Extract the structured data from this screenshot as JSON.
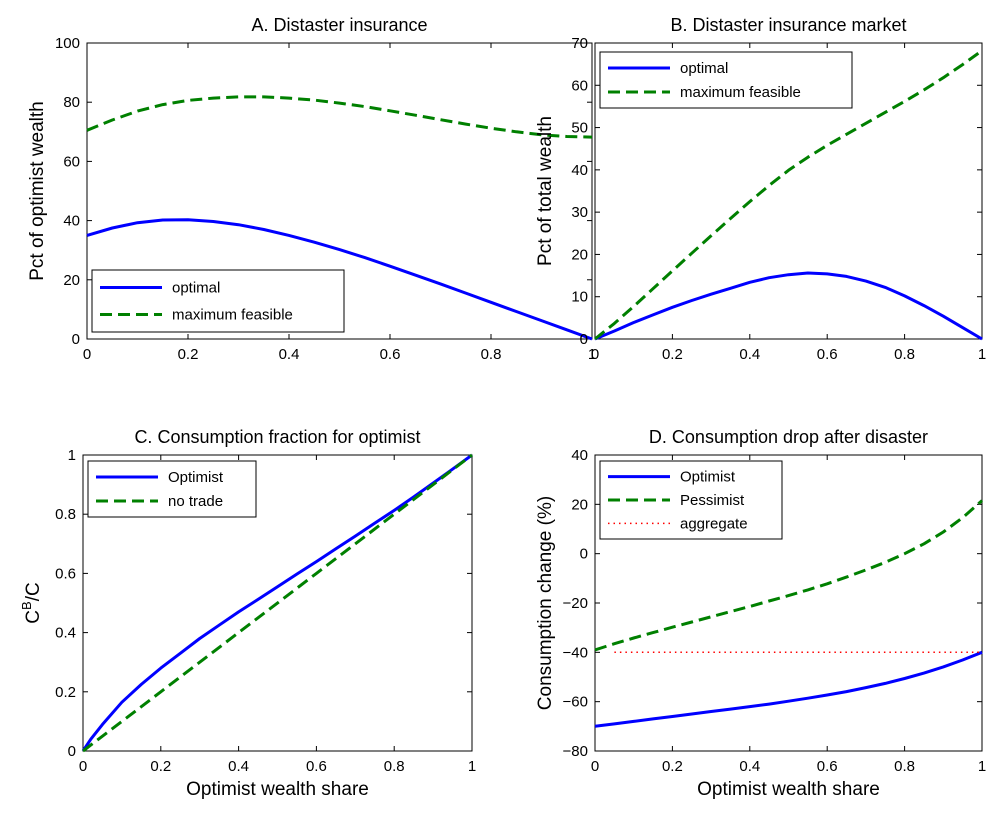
{
  "chart_data": [
    {
      "type": "line",
      "title": "A. Distaster insurance",
      "xlabel": "",
      "ylabel": "Pct of optimist wealth",
      "xlim": [
        0,
        1
      ],
      "ylim": [
        0,
        100
      ],
      "xticks": [
        "0",
        "0.2",
        "0.4",
        "0.6",
        "0.8",
        "1"
      ],
      "yticks": [
        "0",
        "20",
        "40",
        "60",
        "80",
        "100"
      ],
      "legend_position": "bottom-left",
      "series": [
        {
          "name": "optimal",
          "color": "#0000ff",
          "style": "solid",
          "x": [
            0,
            0.05,
            0.1,
            0.15,
            0.2,
            0.25,
            0.3,
            0.35,
            0.4,
            0.45,
            0.5,
            0.55,
            0.6,
            0.65,
            0.7,
            0.75,
            0.8,
            0.85,
            0.9,
            0.95,
            1
          ],
          "y": [
            35,
            37.5,
            39.3,
            40.2,
            40.3,
            39.7,
            38.6,
            37,
            35,
            32.7,
            30.2,
            27.5,
            24.6,
            21.6,
            18.6,
            15.5,
            12.4,
            9.3,
            6.2,
            3.1,
            0
          ]
        },
        {
          "name": "maximum feasible",
          "color": "#008000",
          "style": "dashed",
          "x": [
            0,
            0.05,
            0.1,
            0.15,
            0.2,
            0.25,
            0.3,
            0.35,
            0.4,
            0.45,
            0.5,
            0.55,
            0.6,
            0.65,
            0.7,
            0.75,
            0.8,
            0.85,
            0.9,
            0.95,
            1
          ],
          "y": [
            70.5,
            74,
            77,
            79.2,
            80.6,
            81.4,
            81.8,
            81.8,
            81.4,
            80.7,
            79.7,
            78.5,
            77.1,
            75.6,
            74.1,
            72.6,
            71.2,
            70,
            69,
            68.4,
            68.2
          ]
        }
      ]
    },
    {
      "type": "line",
      "title": "B. Distaster insurance market",
      "xlabel": "",
      "ylabel": "Pct of total wealth",
      "xlim": [
        0,
        1
      ],
      "ylim": [
        0,
        70
      ],
      "xticks": [
        "0",
        "0.2",
        "0.4",
        "0.6",
        "0.8",
        "1"
      ],
      "yticks": [
        "0",
        "10",
        "20",
        "30",
        "40",
        "50",
        "60",
        "70"
      ],
      "legend_position": "top-left",
      "series": [
        {
          "name": "optimal",
          "color": "#0000ff",
          "style": "solid",
          "x": [
            0,
            0.05,
            0.1,
            0.15,
            0.2,
            0.25,
            0.3,
            0.35,
            0.4,
            0.45,
            0.5,
            0.55,
            0.6,
            0.65,
            0.7,
            0.75,
            0.8,
            0.85,
            0.9,
            0.95,
            1
          ],
          "y": [
            0,
            1.9,
            3.9,
            5.7,
            7.5,
            9.1,
            10.6,
            12,
            13.4,
            14.5,
            15.2,
            15.6,
            15.4,
            14.8,
            13.7,
            12.2,
            10.2,
            7.9,
            5.4,
            2.7,
            0
          ]
        },
        {
          "name": "maximum feasible",
          "color": "#008000",
          "style": "dashed",
          "x": [
            0,
            0.05,
            0.1,
            0.15,
            0.2,
            0.25,
            0.3,
            0.35,
            0.4,
            0.45,
            0.5,
            0.55,
            0.6,
            0.65,
            0.7,
            0.75,
            0.8,
            0.85,
            0.9,
            0.95,
            1
          ],
          "y": [
            0,
            3.7,
            7.7,
            11.9,
            16.1,
            20.3,
            24.4,
            28.5,
            32.5,
            36.3,
            39.9,
            43,
            45.8,
            48.4,
            51,
            53.6,
            56.2,
            58.9,
            61.8,
            64.9,
            68.2
          ]
        }
      ]
    },
    {
      "type": "line",
      "title": "C. Consumption fraction for optimist",
      "xlabel": "Optimist wealth share",
      "ylabel": "C",
      "ylabel_sup": "B",
      "ylabel_tail": "/C",
      "xlim": [
        0,
        1
      ],
      "ylim": [
        0,
        1
      ],
      "xticks": [
        "0",
        "0.2",
        "0.4",
        "0.6",
        "0.8",
        "1"
      ],
      "yticks": [
        "0",
        "0.2",
        "0.4",
        "0.6",
        "0.8",
        "1"
      ],
      "legend_position": "top-left",
      "series": [
        {
          "name": "Optimist",
          "color": "#0000ff",
          "style": "solid",
          "x": [
            0,
            0.02,
            0.05,
            0.1,
            0.15,
            0.2,
            0.25,
            0.3,
            0.35,
            0.4,
            0.45,
            0.5,
            0.55,
            0.6,
            0.65,
            0.7,
            0.75,
            0.8,
            0.85,
            0.9,
            0.95,
            1
          ],
          "y": [
            0,
            0.04,
            0.09,
            0.165,
            0.225,
            0.28,
            0.33,
            0.38,
            0.425,
            0.47,
            0.512,
            0.555,
            0.598,
            0.64,
            0.683,
            0.726,
            0.77,
            0.813,
            0.858,
            0.905,
            0.952,
            1
          ]
        },
        {
          "name": "no trade",
          "color": "#008000",
          "style": "dashed",
          "x": [
            0,
            0.2,
            0.4,
            0.6,
            0.8,
            1
          ],
          "y": [
            0,
            0.2,
            0.4,
            0.6,
            0.8,
            1
          ]
        }
      ]
    },
    {
      "type": "line",
      "title": "D. Consumption drop after disaster",
      "xlabel": "Optimist wealth share",
      "ylabel": "Consumption change (%)",
      "xlim": [
        0,
        1
      ],
      "ylim": [
        -80,
        40
      ],
      "xticks": [
        "0",
        "0.2",
        "0.4",
        "0.6",
        "0.8",
        "1"
      ],
      "yticks": [
        "−80",
        "−60",
        "−40",
        "−20",
        "0",
        "20",
        "40"
      ],
      "legend_position": "top-left",
      "series": [
        {
          "name": "Optimist",
          "color": "#0000ff",
          "style": "solid",
          "x": [
            0,
            0.05,
            0.1,
            0.15,
            0.2,
            0.25,
            0.3,
            0.35,
            0.4,
            0.45,
            0.5,
            0.55,
            0.6,
            0.65,
            0.7,
            0.75,
            0.8,
            0.85,
            0.9,
            0.95,
            1
          ],
          "y": [
            -70,
            -69,
            -68,
            -67,
            -66,
            -65,
            -64,
            -63,
            -62,
            -61,
            -59.8,
            -58.6,
            -57.3,
            -55.9,
            -54.3,
            -52.6,
            -50.6,
            -48.4,
            -45.9,
            -43.1,
            -40
          ]
        },
        {
          "name": "Pessimist",
          "color": "#008000",
          "style": "dashed",
          "x": [
            0,
            0.05,
            0.1,
            0.15,
            0.2,
            0.25,
            0.3,
            0.35,
            0.4,
            0.45,
            0.5,
            0.55,
            0.6,
            0.65,
            0.7,
            0.75,
            0.8,
            0.85,
            0.9,
            0.95,
            1
          ],
          "y": [
            -39,
            -36.5,
            -34.2,
            -32,
            -29.8,
            -27.7,
            -25.6,
            -23.5,
            -21.4,
            -19.2,
            -17,
            -14.7,
            -12.2,
            -9.5,
            -6.6,
            -3.5,
            0,
            4,
            8.8,
            14.6,
            21.5
          ]
        },
        {
          "name": "aggregate",
          "color": "#ff0000",
          "style": "dotted",
          "x": [
            0.05,
            1
          ],
          "y": [
            -40,
            -40
          ]
        }
      ]
    }
  ]
}
